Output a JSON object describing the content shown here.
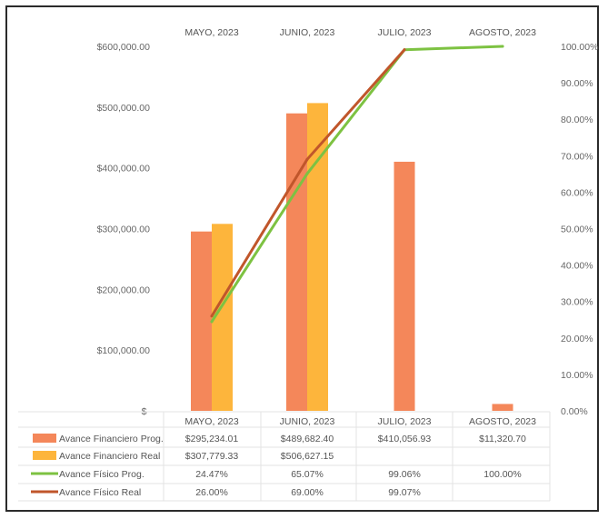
{
  "chart_data": {
    "type": "bar",
    "title": "",
    "categories": [
      "MAYO, 2023",
      "JUNIO, 2023",
      "JULIO, 2023",
      "AGOSTO, 2023"
    ],
    "y_left": {
      "ylim": [
        0,
        600000
      ],
      "ticks": [
        "$-",
        "$100,000.00",
        "$200,000.00",
        "$300,000.00",
        "$400,000.00",
        "$500,000.00",
        "$600,000.00"
      ]
    },
    "y_right": {
      "ylim": [
        0,
        1
      ],
      "ticks": [
        "0.00%",
        "10.00%",
        "20.00%",
        "30.00%",
        "40.00%",
        "50.00%",
        "60.00%",
        "70.00%",
        "80.00%",
        "90.00%",
        "100.00%"
      ]
    },
    "series": [
      {
        "name": "Avance Financiero Prog.",
        "kind": "bar",
        "axis": "left",
        "color": "#F4875A",
        "values": [
          295234.01,
          489682.4,
          410056.93,
          11320.7
        ],
        "labels": [
          "$295,234.01",
          "$489,682.40",
          "$410,056.93",
          "$11,320.70"
        ]
      },
      {
        "name": "Avance Financiero Real",
        "kind": "bar",
        "axis": "left",
        "color": "#FDB53C",
        "values": [
          307779.33,
          506627.15,
          null,
          null
        ],
        "labels": [
          "$307,779.33",
          "$506,627.15",
          "",
          ""
        ]
      },
      {
        "name": "Avance Físico Prog.",
        "kind": "line",
        "axis": "right",
        "color": "#7DC242",
        "values": [
          0.2447,
          0.6507,
          0.9906,
          1.0
        ],
        "labels": [
          "24.47%",
          "65.07%",
          "99.06%",
          "100.00%"
        ]
      },
      {
        "name": "Avance Físico Real",
        "kind": "line",
        "axis": "right",
        "color": "#C0562B",
        "values": [
          0.26,
          0.69,
          0.9907,
          null
        ],
        "labels": [
          "26.00%",
          "69.00%",
          "99.07%",
          ""
        ]
      }
    ],
    "grid": false,
    "legend": "data-table-bottom"
  }
}
